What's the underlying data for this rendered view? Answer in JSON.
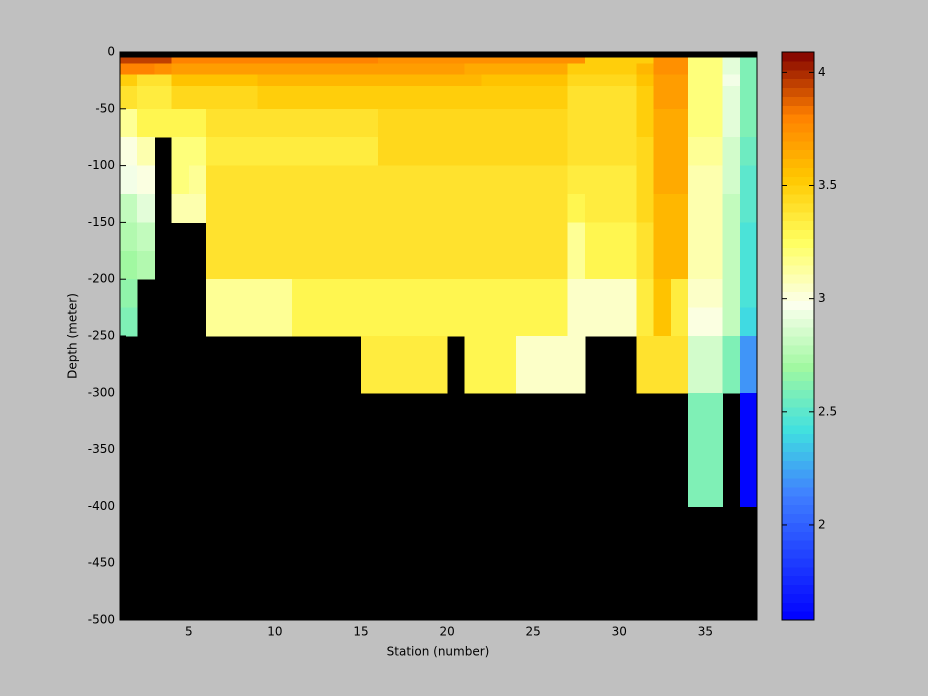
{
  "chart_data": {
    "type": "heatmap",
    "xlabel": "Station (number)",
    "ylabel": "Depth (meter)",
    "xbins": [
      1,
      2,
      3,
      4,
      5,
      6,
      7,
      8,
      9,
      10,
      11,
      12,
      13,
      14,
      15,
      16,
      17,
      18,
      19,
      20,
      21,
      22,
      23,
      24,
      25,
      26,
      27,
      28,
      29,
      30,
      31,
      32,
      33,
      34,
      35,
      36,
      37,
      38
    ],
    "ybins": [
      0,
      -5,
      -10,
      -20,
      -30,
      -50,
      -75,
      -100,
      -125,
      -150,
      -175,
      -200,
      -225,
      -250,
      -275,
      -300,
      -325,
      -350,
      -375,
      -400
    ],
    "xlim": [
      1,
      38
    ],
    "ylim": [
      -500,
      0
    ],
    "xticks": [
      5,
      10,
      15,
      20,
      25,
      30,
      35
    ],
    "yticks": [
      0,
      -50,
      -100,
      -150,
      -200,
      -250,
      -300,
      -350,
      -400,
      -450,
      -500
    ],
    "clim": [
      1.58,
      4.09
    ],
    "cticks": [
      2,
      2.5,
      3,
      3.5,
      4
    ],
    "colormap": [
      "#0000ff",
      "#2040ff",
      "#4080ff",
      "#40e0e0",
      "#a0f8a0",
      "#fbffee",
      "#ffff60",
      "#ffc800",
      "#ff8000",
      "#800000"
    ],
    "missing_color": "#000000",
    "values": [
      [
        null,
        null,
        null,
        null,
        null,
        null,
        null,
        null,
        null,
        null,
        null,
        null,
        null,
        null,
        null,
        null,
        null,
        null,
        null,
        null,
        null,
        null,
        null,
        null,
        null,
        null,
        null,
        null,
        null,
        null,
        null,
        null,
        null,
        null,
        null,
        null,
        null
      ],
      [
        3.95,
        3.95,
        3.95,
        3.8,
        3.8,
        3.8,
        3.8,
        3.8,
        3.8,
        3.8,
        3.8,
        3.8,
        3.8,
        3.8,
        3.8,
        3.75,
        3.75,
        3.75,
        3.75,
        3.75,
        3.75,
        3.75,
        3.75,
        3.75,
        3.75,
        3.75,
        3.75,
        3.5,
        3.5,
        3.5,
        3.5,
        3.75,
        3.75,
        3.2,
        3.2,
        2.9,
        2.6
      ],
      [
        3.8,
        3.8,
        3.75,
        3.7,
        3.7,
        3.7,
        3.7,
        3.7,
        3.7,
        3.7,
        3.7,
        3.7,
        3.7,
        3.7,
        3.7,
        3.7,
        3.7,
        3.7,
        3.7,
        3.7,
        3.65,
        3.65,
        3.65,
        3.65,
        3.65,
        3.65,
        3.5,
        3.5,
        3.5,
        3.5,
        3.6,
        3.75,
        3.75,
        3.2,
        3.2,
        2.9,
        2.6
      ],
      [
        3.5,
        3.4,
        3.4,
        3.55,
        3.55,
        3.55,
        3.55,
        3.55,
        3.6,
        3.6,
        3.6,
        3.6,
        3.6,
        3.6,
        3.6,
        3.6,
        3.6,
        3.6,
        3.6,
        3.6,
        3.6,
        3.55,
        3.55,
        3.55,
        3.55,
        3.55,
        3.45,
        3.45,
        3.45,
        3.45,
        3.55,
        3.7,
        3.7,
        3.2,
        3.2,
        2.95,
        2.6
      ],
      [
        3.4,
        3.35,
        3.35,
        3.45,
        3.45,
        3.45,
        3.45,
        3.45,
        3.5,
        3.5,
        3.5,
        3.5,
        3.5,
        3.5,
        3.5,
        3.5,
        3.5,
        3.5,
        3.5,
        3.5,
        3.5,
        3.5,
        3.5,
        3.5,
        3.5,
        3.5,
        3.4,
        3.4,
        3.4,
        3.4,
        3.5,
        3.7,
        3.7,
        3.2,
        3.2,
        2.9,
        2.6
      ],
      [
        3.15,
        3.3,
        3.3,
        3.3,
        3.3,
        3.4,
        3.4,
        3.4,
        3.4,
        3.4,
        3.4,
        3.4,
        3.4,
        3.4,
        3.4,
        3.45,
        3.45,
        3.45,
        3.45,
        3.45,
        3.45,
        3.45,
        3.45,
        3.45,
        3.45,
        3.45,
        3.4,
        3.4,
        3.4,
        3.4,
        3.5,
        3.65,
        3.65,
        3.2,
        3.2,
        2.9,
        2.6
      ],
      [
        3.0,
        3.1,
        null,
        3.2,
        3.2,
        3.35,
        3.35,
        3.35,
        3.35,
        3.35,
        3.35,
        3.35,
        3.35,
        3.35,
        3.35,
        3.45,
        3.45,
        3.45,
        3.45,
        3.45,
        3.45,
        3.45,
        3.45,
        3.45,
        3.45,
        3.45,
        3.4,
        3.4,
        3.4,
        3.4,
        3.45,
        3.65,
        3.65,
        3.15,
        3.15,
        2.85,
        2.55
      ],
      [
        2.95,
        3.0,
        null,
        3.2,
        3.15,
        3.4,
        3.4,
        3.4,
        3.4,
        3.4,
        3.4,
        3.4,
        3.4,
        3.4,
        3.4,
        3.4,
        3.4,
        3.4,
        3.4,
        3.4,
        3.4,
        3.4,
        3.4,
        3.4,
        3.4,
        3.4,
        3.35,
        3.35,
        3.35,
        3.35,
        3.45,
        3.65,
        3.65,
        3.1,
        3.1,
        2.85,
        2.5
      ],
      [
        2.8,
        2.9,
        null,
        3.1,
        3.1,
        3.4,
        3.4,
        3.4,
        3.4,
        3.4,
        3.4,
        3.4,
        3.4,
        3.4,
        3.4,
        3.4,
        3.4,
        3.4,
        3.4,
        3.4,
        3.4,
        3.4,
        3.4,
        3.4,
        3.4,
        3.4,
        3.3,
        3.35,
        3.35,
        3.35,
        3.45,
        3.6,
        3.6,
        3.1,
        3.1,
        2.8,
        2.5
      ],
      [
        2.75,
        2.8,
        null,
        null,
        null,
        3.4,
        3.4,
        3.4,
        3.4,
        3.4,
        3.4,
        3.4,
        3.4,
        3.4,
        3.4,
        3.4,
        3.4,
        3.4,
        3.4,
        3.4,
        3.4,
        3.4,
        3.4,
        3.4,
        3.4,
        3.4,
        3.15,
        3.3,
        3.3,
        3.3,
        3.4,
        3.6,
        3.6,
        3.1,
        3.1,
        2.8,
        2.45
      ],
      [
        2.7,
        2.75,
        null,
        null,
        null,
        3.4,
        3.4,
        3.4,
        3.4,
        3.4,
        3.4,
        3.4,
        3.4,
        3.4,
        3.4,
        3.4,
        3.4,
        3.4,
        3.4,
        3.4,
        3.4,
        3.4,
        3.4,
        3.4,
        3.4,
        3.4,
        3.15,
        3.3,
        3.3,
        3.3,
        3.4,
        3.6,
        3.6,
        3.1,
        3.1,
        2.8,
        2.45
      ],
      [
        2.65,
        null,
        null,
        null,
        null,
        3.15,
        3.15,
        3.15,
        3.15,
        3.15,
        3.3,
        3.3,
        3.3,
        3.3,
        3.3,
        3.3,
        3.3,
        3.3,
        3.3,
        3.3,
        3.3,
        3.3,
        3.3,
        3.3,
        3.3,
        3.3,
        3.05,
        3.05,
        3.05,
        3.05,
        3.35,
        3.55,
        3.35,
        3.05,
        3.05,
        2.8,
        2.45
      ],
      [
        2.6,
        null,
        null,
        null,
        null,
        3.15,
        3.15,
        3.15,
        3.15,
        3.15,
        3.3,
        3.3,
        3.3,
        3.3,
        3.3,
        3.3,
        3.3,
        3.3,
        3.3,
        3.3,
        3.3,
        3.3,
        3.3,
        3.3,
        3.3,
        3.3,
        3.05,
        3.05,
        3.05,
        3.05,
        3.35,
        3.55,
        3.35,
        3.0,
        3.0,
        2.8,
        2.4
      ],
      [
        null,
        null,
        null,
        null,
        null,
        null,
        null,
        null,
        null,
        null,
        null,
        null,
        null,
        null,
        3.35,
        3.35,
        3.35,
        3.35,
        3.35,
        null,
        3.3,
        3.3,
        3.3,
        3.05,
        3.05,
        3.05,
        3.05,
        null,
        null,
        null,
        3.4,
        3.4,
        3.4,
        2.85,
        2.85,
        2.6,
        2.2
      ],
      [
        null,
        null,
        null,
        null,
        null,
        null,
        null,
        null,
        null,
        null,
        null,
        null,
        null,
        null,
        3.35,
        3.35,
        3.35,
        3.35,
        3.35,
        null,
        3.3,
        3.3,
        3.3,
        3.05,
        3.05,
        3.05,
        3.05,
        null,
        null,
        null,
        3.4,
        3.4,
        3.4,
        2.85,
        2.85,
        2.6,
        2.2
      ],
      [
        null,
        null,
        null,
        null,
        null,
        null,
        null,
        null,
        null,
        null,
        null,
        null,
        null,
        null,
        null,
        null,
        null,
        null,
        null,
        null,
        null,
        null,
        null,
        null,
        null,
        null,
        null,
        null,
        null,
        null,
        null,
        null,
        null,
        2.6,
        2.6,
        null,
        1.6
      ],
      [
        null,
        null,
        null,
        null,
        null,
        null,
        null,
        null,
        null,
        null,
        null,
        null,
        null,
        null,
        null,
        null,
        null,
        null,
        null,
        null,
        null,
        null,
        null,
        null,
        null,
        null,
        null,
        null,
        null,
        null,
        null,
        null,
        null,
        2.6,
        2.6,
        null,
        1.6
      ],
      [
        null,
        null,
        null,
        null,
        null,
        null,
        null,
        null,
        null,
        null,
        null,
        null,
        null,
        null,
        null,
        null,
        null,
        null,
        null,
        null,
        null,
        null,
        null,
        null,
        null,
        null,
        null,
        null,
        null,
        null,
        null,
        null,
        null,
        2.6,
        2.6,
        null,
        1.6
      ],
      [
        null,
        null,
        null,
        null,
        null,
        null,
        null,
        null,
        null,
        null,
        null,
        null,
        null,
        null,
        null,
        null,
        null,
        null,
        null,
        null,
        null,
        null,
        null,
        null,
        null,
        null,
        null,
        null,
        null,
        null,
        null,
        null,
        null,
        2.6,
        2.6,
        null,
        1.6
      ]
    ]
  }
}
